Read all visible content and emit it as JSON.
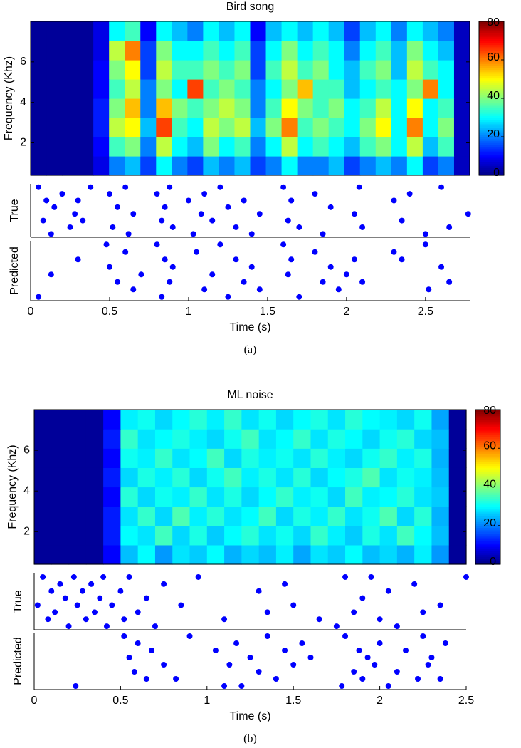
{
  "chart_data": [
    {
      "type": "heatmap",
      "title": "Bird song",
      "ylabel": "Frequency (Khz)",
      "xlim": [
        0,
        2.78
      ],
      "ylim": [
        0.4,
        8
      ],
      "yticks": [
        2,
        4,
        6
      ],
      "clim": [
        0,
        80
      ],
      "cticks": [
        0,
        20,
        40,
        60,
        80
      ],
      "colormap": "jet",
      "z": [
        [
          2,
          2,
          2,
          2,
          8,
          20,
          25,
          15,
          30,
          20,
          15,
          25,
          20,
          25,
          15,
          20,
          30,
          20,
          20,
          25,
          15,
          20,
          25,
          20,
          30,
          15,
          20,
          5
        ],
        [
          2,
          2,
          2,
          2,
          10,
          35,
          40,
          20,
          45,
          30,
          25,
          40,
          30,
          35,
          20,
          30,
          45,
          30,
          35,
          30,
          25,
          35,
          40,
          30,
          45,
          25,
          35,
          5
        ],
        [
          2,
          2,
          2,
          2,
          12,
          45,
          50,
          25,
          65,
          35,
          30,
          45,
          40,
          45,
          25,
          40,
          60,
          35,
          40,
          35,
          30,
          40,
          50,
          30,
          60,
          30,
          40,
          5
        ],
        [
          2,
          2,
          2,
          2,
          12,
          40,
          55,
          20,
          55,
          40,
          35,
          40,
          45,
          40,
          20,
          35,
          50,
          40,
          35,
          40,
          30,
          35,
          45,
          30,
          50,
          30,
          35,
          5
        ],
        [
          2,
          2,
          2,
          2,
          10,
          35,
          45,
          20,
          40,
          30,
          65,
          35,
          40,
          35,
          20,
          30,
          40,
          55,
          35,
          35,
          25,
          30,
          35,
          30,
          40,
          60,
          30,
          5
        ],
        [
          2,
          2,
          2,
          2,
          10,
          40,
          50,
          15,
          45,
          35,
          35,
          40,
          35,
          40,
          15,
          35,
          45,
          35,
          40,
          30,
          25,
          35,
          40,
          25,
          45,
          35,
          30,
          5
        ],
        [
          2,
          2,
          2,
          2,
          8,
          45,
          60,
          15,
          40,
          30,
          30,
          35,
          30,
          35,
          15,
          30,
          40,
          30,
          35,
          30,
          20,
          30,
          35,
          25,
          40,
          30,
          25,
          5
        ],
        [
          2,
          2,
          2,
          2,
          8,
          30,
          35,
          10,
          30,
          25,
          20,
          30,
          25,
          30,
          10,
          25,
          30,
          25,
          30,
          25,
          15,
          25,
          30,
          20,
          30,
          25,
          20,
          5
        ]
      ]
    },
    {
      "type": "scatter",
      "ylabel": "True",
      "xlim": [
        0,
        2.78
      ],
      "ylim": [
        0.5,
        8.5
      ],
      "color": "#0000ff",
      "x": [
        0.05,
        0.08,
        0.1,
        0.13,
        0.15,
        0.2,
        0.25,
        0.28,
        0.3,
        0.33,
        0.38,
        0.5,
        0.52,
        0.55,
        0.6,
        0.62,
        0.65,
        0.8,
        0.83,
        0.85,
        0.88,
        0.9,
        1.0,
        1.03,
        1.08,
        1.1,
        1.15,
        1.2,
        1.25,
        1.3,
        1.35,
        1.4,
        1.45,
        1.6,
        1.63,
        1.65,
        1.7,
        1.8,
        1.85,
        1.9,
        2.05,
        2.08,
        2.1,
        2.3,
        2.35,
        2.4,
        2.5,
        2.6,
        2.65,
        2.77
      ],
      "values": [
        8,
        3,
        6,
        1,
        5,
        7,
        2,
        4,
        6,
        3,
        8,
        7,
        2,
        5,
        8,
        1,
        4,
        7,
        3,
        5,
        8,
        2,
        6,
        1,
        4,
        7,
        3,
        8,
        5,
        2,
        6,
        1,
        4,
        8,
        3,
        6,
        2,
        7,
        1,
        5,
        4,
        8,
        2,
        6,
        3,
        7,
        1,
        8,
        2,
        4
      ]
    },
    {
      "type": "scatter",
      "ylabel": "Predicted",
      "xlabel": "Time (s)",
      "caption": "(a)",
      "xlim": [
        0,
        2.78
      ],
      "ylim": [
        0.5,
        8.5
      ],
      "xticks": [
        0,
        0.5,
        1,
        1.5,
        2,
        2.5
      ],
      "color": "#0000ff",
      "x": [
        0.05,
        0.13,
        0.3,
        0.48,
        0.5,
        0.55,
        0.6,
        0.65,
        0.7,
        0.8,
        0.83,
        0.85,
        0.88,
        0.9,
        1.05,
        1.1,
        1.15,
        1.2,
        1.25,
        1.3,
        1.35,
        1.4,
        1.45,
        1.6,
        1.63,
        1.65,
        1.7,
        1.8,
        1.85,
        1.9,
        1.95,
        2.0,
        2.05,
        2.1,
        2.3,
        2.35,
        2.5,
        2.52,
        2.6,
        2.65
      ],
      "values": [
        1,
        4,
        6,
        8,
        5,
        3,
        7,
        2,
        4,
        8,
        1,
        6,
        3,
        5,
        7,
        2,
        4,
        8,
        1,
        6,
        3,
        5,
        2,
        8,
        4,
        6,
        1,
        7,
        3,
        5,
        2,
        4,
        6,
        3,
        7,
        6,
        8,
        2,
        5,
        3
      ]
    },
    {
      "type": "heatmap",
      "title": "ML noise",
      "ylabel": "Frequency (Khz)",
      "xlim": [
        0,
        2.5
      ],
      "ylim": [
        0.4,
        8
      ],
      "yticks": [
        2,
        4,
        6
      ],
      "clim": [
        0,
        80
      ],
      "cticks": [
        0,
        20,
        40,
        60,
        80
      ],
      "colormap": "jet",
      "z": [
        [
          2,
          2,
          2,
          2,
          10,
          25,
          30,
          22,
          28,
          26,
          30,
          24,
          27,
          25,
          29,
          23,
          28,
          26,
          30,
          25,
          27,
          24,
          29,
          22,
          2
        ],
        [
          2,
          2,
          2,
          2,
          12,
          30,
          28,
          35,
          27,
          32,
          26,
          30,
          33,
          28,
          31,
          27,
          34,
          29,
          26,
          32,
          28,
          35,
          30,
          25,
          2
        ],
        [
          2,
          2,
          2,
          2,
          12,
          28,
          34,
          27,
          36,
          29,
          33,
          28,
          30,
          35,
          27,
          32,
          29,
          34,
          28,
          31,
          36,
          27,
          33,
          24,
          2
        ],
        [
          2,
          2,
          2,
          2,
          10,
          33,
          27,
          31,
          29,
          34,
          28,
          32,
          27,
          30,
          34,
          29,
          31,
          27,
          35,
          29,
          30,
          33,
          28,
          26,
          2
        ],
        [
          2,
          2,
          2,
          2,
          12,
          27,
          32,
          29,
          33,
          27,
          31,
          35,
          29,
          32,
          28,
          33,
          27,
          30,
          32,
          36,
          28,
          31,
          29,
          25,
          2
        ],
        [
          2,
          2,
          2,
          2,
          10,
          31,
          29,
          34,
          28,
          30,
          35,
          27,
          32,
          29,
          31,
          28,
          33,
          29,
          27,
          31,
          34,
          29,
          32,
          24,
          2
        ],
        [
          2,
          2,
          2,
          2,
          12,
          34,
          28,
          30,
          32,
          29,
          27,
          31,
          35,
          28,
          30,
          34,
          28,
          32,
          30,
          27,
          31,
          33,
          27,
          25,
          2
        ],
        [
          2,
          2,
          2,
          2,
          10,
          29,
          31,
          27,
          30,
          33,
          29,
          34,
          28,
          31,
          27,
          30,
          32,
          28,
          33,
          30,
          29,
          27,
          31,
          23,
          2
        ]
      ]
    },
    {
      "type": "scatter",
      "ylabel": "True",
      "xlim": [
        0,
        2.5
      ],
      "ylim": [
        0.5,
        8.5
      ],
      "color": "#0000ff",
      "x": [
        0.02,
        0.05,
        0.08,
        0.1,
        0.12,
        0.15,
        0.18,
        0.2,
        0.23,
        0.25,
        0.28,
        0.3,
        0.33,
        0.35,
        0.38,
        0.4,
        0.42,
        0.45,
        0.5,
        0.52,
        0.55,
        0.6,
        0.65,
        0.7,
        0.75,
        0.85,
        0.95,
        1.1,
        1.3,
        1.35,
        1.45,
        1.5,
        1.65,
        1.75,
        1.8,
        1.85,
        1.9,
        1.95,
        2.0,
        2.05,
        2.1,
        2.2,
        2.25,
        2.35,
        2.5
      ],
      "values": [
        4,
        8,
        2,
        6,
        3,
        7,
        5,
        1,
        8,
        4,
        6,
        2,
        7,
        3,
        5,
        8,
        1,
        4,
        6,
        2,
        8,
        3,
        5,
        1,
        7,
        4,
        8,
        2,
        6,
        3,
        7,
        4,
        2,
        1,
        8,
        3,
        5,
        8,
        2,
        6,
        1,
        7,
        3,
        4,
        8
      ]
    },
    {
      "type": "scatter",
      "ylabel": "Predicted",
      "xlabel": "Time (s)",
      "caption": "(b)",
      "xlim": [
        0,
        2.5
      ],
      "ylim": [
        0.5,
        8.5
      ],
      "xticks": [
        0,
        0.5,
        1,
        1.5,
        2,
        2.5
      ],
      "color": "#0000ff",
      "x": [
        0.24,
        0.52,
        0.55,
        0.58,
        0.6,
        0.65,
        0.68,
        0.75,
        0.82,
        0.9,
        1.05,
        1.1,
        1.13,
        1.17,
        1.2,
        1.25,
        1.3,
        1.35,
        1.4,
        1.45,
        1.5,
        1.55,
        1.6,
        1.78,
        1.8,
        1.85,
        1.88,
        1.9,
        1.93,
        1.97,
        2.0,
        2.05,
        2.1,
        2.15,
        2.22,
        2.25,
        2.28,
        2.3,
        2.35,
        2.38
      ],
      "values": [
        1,
        8,
        5,
        3,
        7,
        2,
        6,
        4,
        2,
        8,
        6,
        1,
        4,
        7,
        1,
        5,
        3,
        8,
        2,
        6,
        4,
        7,
        5,
        1,
        8,
        3,
        6,
        2,
        5,
        4,
        7,
        1,
        3,
        6,
        2,
        8,
        4,
        5,
        2,
        7
      ]
    }
  ]
}
